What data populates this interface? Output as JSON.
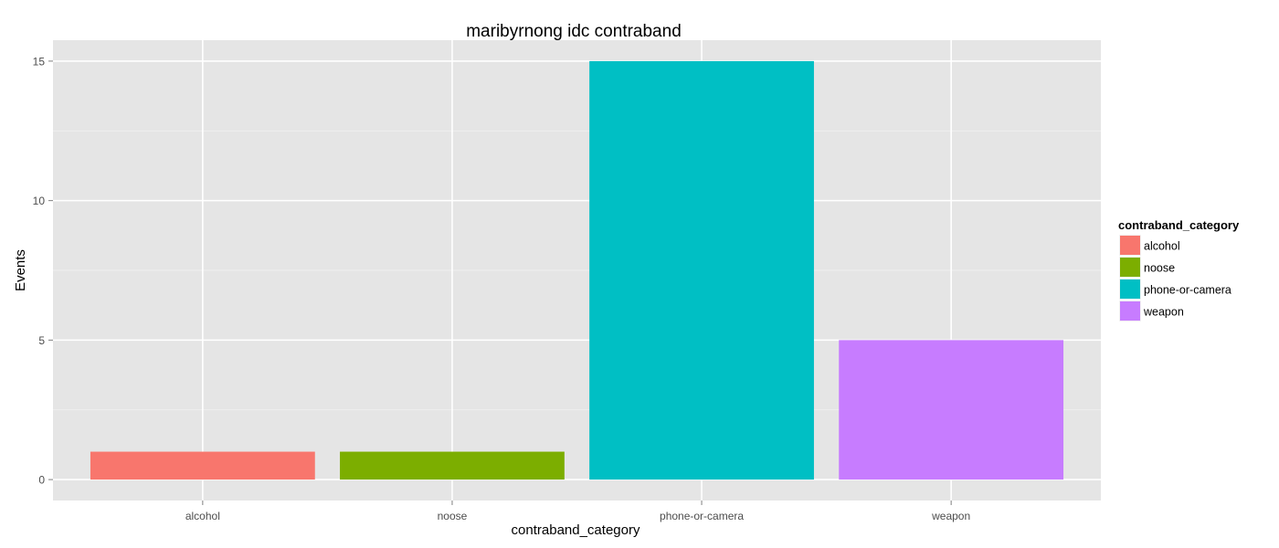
{
  "chart_data": {
    "type": "bar",
    "title": "maribyrnong idc contraband",
    "xlabel": "contraband_category",
    "ylabel": "Events",
    "categories": [
      "alcohol",
      "noose",
      "phone-or-camera",
      "weapon"
    ],
    "values": [
      1,
      1,
      15,
      5
    ],
    "colors": [
      "#F8766D",
      "#7CAE00",
      "#00BFC4",
      "#C77CFF"
    ],
    "ylim": [
      -0.75,
      15.75
    ],
    "yticks": [
      0,
      5,
      10,
      15
    ],
    "grid": true,
    "panel_background": "#E5E5E5",
    "legend": {
      "title": "contraband_category",
      "placement": "right",
      "items": [
        "alcohol",
        "noose",
        "phone-or-camera",
        "weapon"
      ]
    }
  }
}
